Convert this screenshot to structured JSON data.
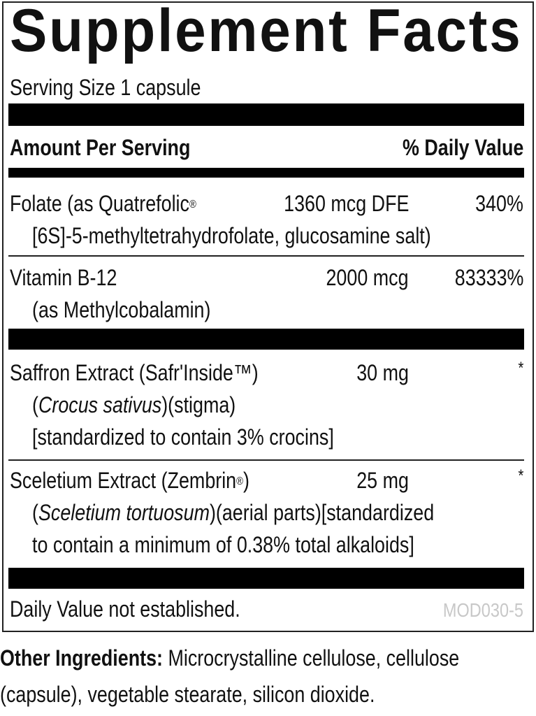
{
  "title": "Supplement Facts",
  "serving_size": "Serving Size 1 capsule",
  "header": {
    "amount": "Amount Per Serving",
    "dv": "% Daily Value"
  },
  "nutrients": [
    {
      "name": "Folate (as Quatrefolic",
      "mark": "®",
      "amount": "1360 mcg DFE",
      "dv": "340%",
      "detail": "[6S]-5-methyltetrahydrofolate, glucosamine salt)"
    },
    {
      "name": "Vitamin B-12",
      "amount": "2000 mcg",
      "dv": "83333%",
      "detail": "(as Methylcobalamin)"
    }
  ],
  "extracts": [
    {
      "name": "Saffron Extract (Safr'Inside™)",
      "amount": "30 mg",
      "dv": "*",
      "latin": "Crocus sativus",
      "part": ")(stigma)",
      "detail": "[standardized to contain 3% crocins]"
    },
    {
      "name": "Sceletium Extract (Zembrin",
      "mark": "®",
      "name_end": ")",
      "amount": "25 mg",
      "dv": "*",
      "latin": "Sceletium tortuosum",
      "part": ")(aerial parts)[standardized",
      "detail": "to contain a minimum of 0.38% total alkaloids]"
    }
  ],
  "footnote": "Daily Value not established.",
  "code": "MOD030-5",
  "other_ingredients": {
    "label": "Other Ingredients:",
    "text1": " Microcrystalline cellulose, cellulose",
    "text2": "(capsule), vegetable stearate, silicon dioxide."
  }
}
